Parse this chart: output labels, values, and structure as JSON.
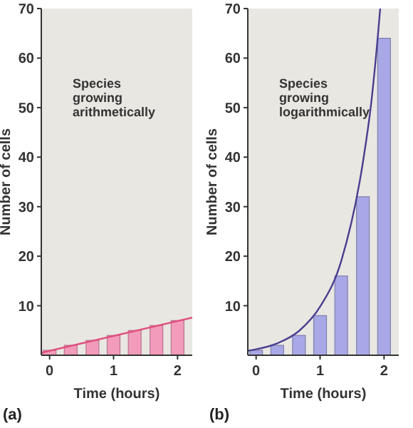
{
  "chart_data": [
    {
      "type": "bar",
      "xlabel": "Time (hours)",
      "ylabel": "Number of cells",
      "x": [
        0,
        0.33,
        0.67,
        1,
        1.33,
        1.67,
        2
      ],
      "xlim": [
        -0.13,
        2.23
      ],
      "xticks": [
        0,
        1,
        2
      ],
      "ylim": [
        0,
        70
      ],
      "yticks": [
        10,
        20,
        30,
        40,
        50,
        60,
        70
      ],
      "annotations": [
        "Species growing arithmetically",
        "(a)"
      ],
      "series": [
        {
          "color": "#f29bbb",
          "values": [
            1,
            2,
            3,
            4,
            5,
            6,
            7
          ]
        },
        {
          "type": "line",
          "color": "#e0507f",
          "x": [
            -0.13,
            2.23
          ],
          "values": [
            0.5,
            7.6
          ]
        }
      ]
    },
    {
      "type": "bar",
      "xlabel": "Time (hours)",
      "ylabel": "Number of cells",
      "x": [
        0,
        0.33,
        0.67,
        1,
        1.33,
        1.67,
        2
      ],
      "xlim": [
        -0.13,
        2.23
      ],
      "xticks": [
        0,
        1,
        2
      ],
      "ylim": [
        0,
        70
      ],
      "yticks": [
        10,
        20,
        30,
        40,
        50,
        60,
        70
      ],
      "annotations": [
        "Species growing logarithmically",
        "(b)"
      ],
      "series": [
        {
          "color": "#a9a8e6",
          "values": [
            1,
            2,
            4,
            8,
            16,
            32,
            64
          ]
        },
        {
          "type": "line",
          "color": "#4a3f8f",
          "x": [
            -0.13,
            0,
            0.33,
            0.67,
            1,
            1.33,
            1.67,
            1.8,
            1.9,
            1.94
          ],
          "values": [
            0.9,
            1.2,
            2.4,
            4.9,
            9.8,
            19,
            39,
            51,
            64,
            70
          ]
        }
      ]
    }
  ]
}
